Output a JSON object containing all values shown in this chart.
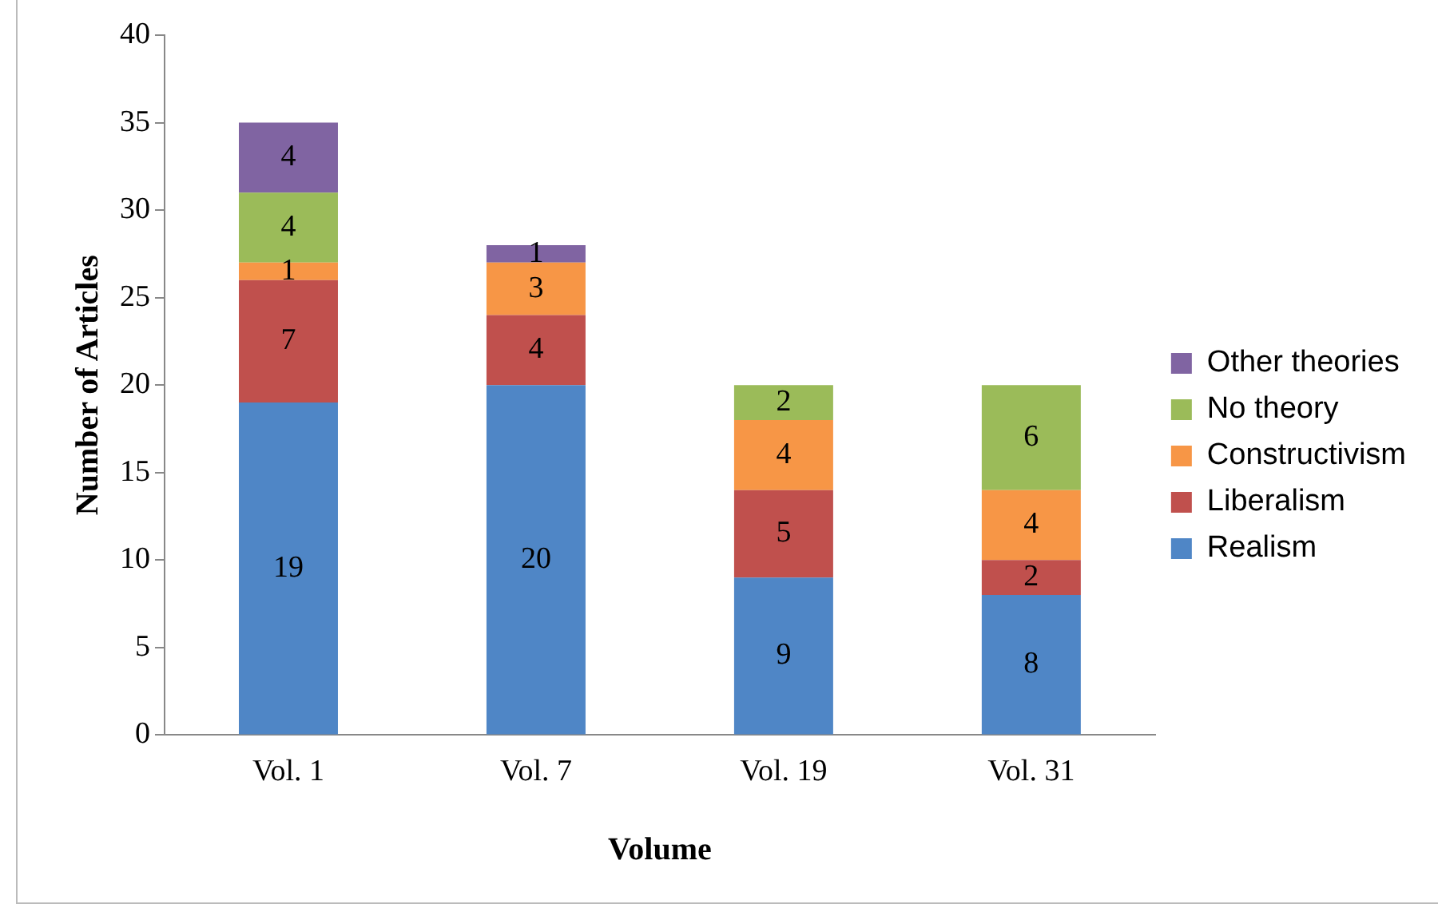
{
  "chart_data": {
    "type": "bar",
    "stacked": true,
    "xlabel": "Volume",
    "ylabel": "Number of Articles",
    "categories": [
      "Vol. 1",
      "Vol. 7",
      "Vol. 19",
      "Vol. 31"
    ],
    "series": [
      {
        "name": "Realism",
        "color": "#4f86c6",
        "values": [
          19,
          20,
          9,
          8
        ]
      },
      {
        "name": "Liberalism",
        "color": "#c0504d",
        "values": [
          7,
          4,
          5,
          2
        ]
      },
      {
        "name": "Constructivism",
        "color": "#f79646",
        "values": [
          1,
          3,
          4,
          4
        ]
      },
      {
        "name": "No theory",
        "color": "#9bbb59",
        "values": [
          4,
          null,
          2,
          6
        ]
      },
      {
        "name": "Other theories",
        "color": "#8064a2",
        "values": [
          4,
          1,
          null,
          null
        ]
      }
    ],
    "ylim": [
      0,
      40
    ],
    "yticks": [
      0,
      5,
      10,
      15,
      20,
      25,
      30,
      35,
      40
    ],
    "grid": false,
    "legend": "right",
    "data_labels": true
  }
}
